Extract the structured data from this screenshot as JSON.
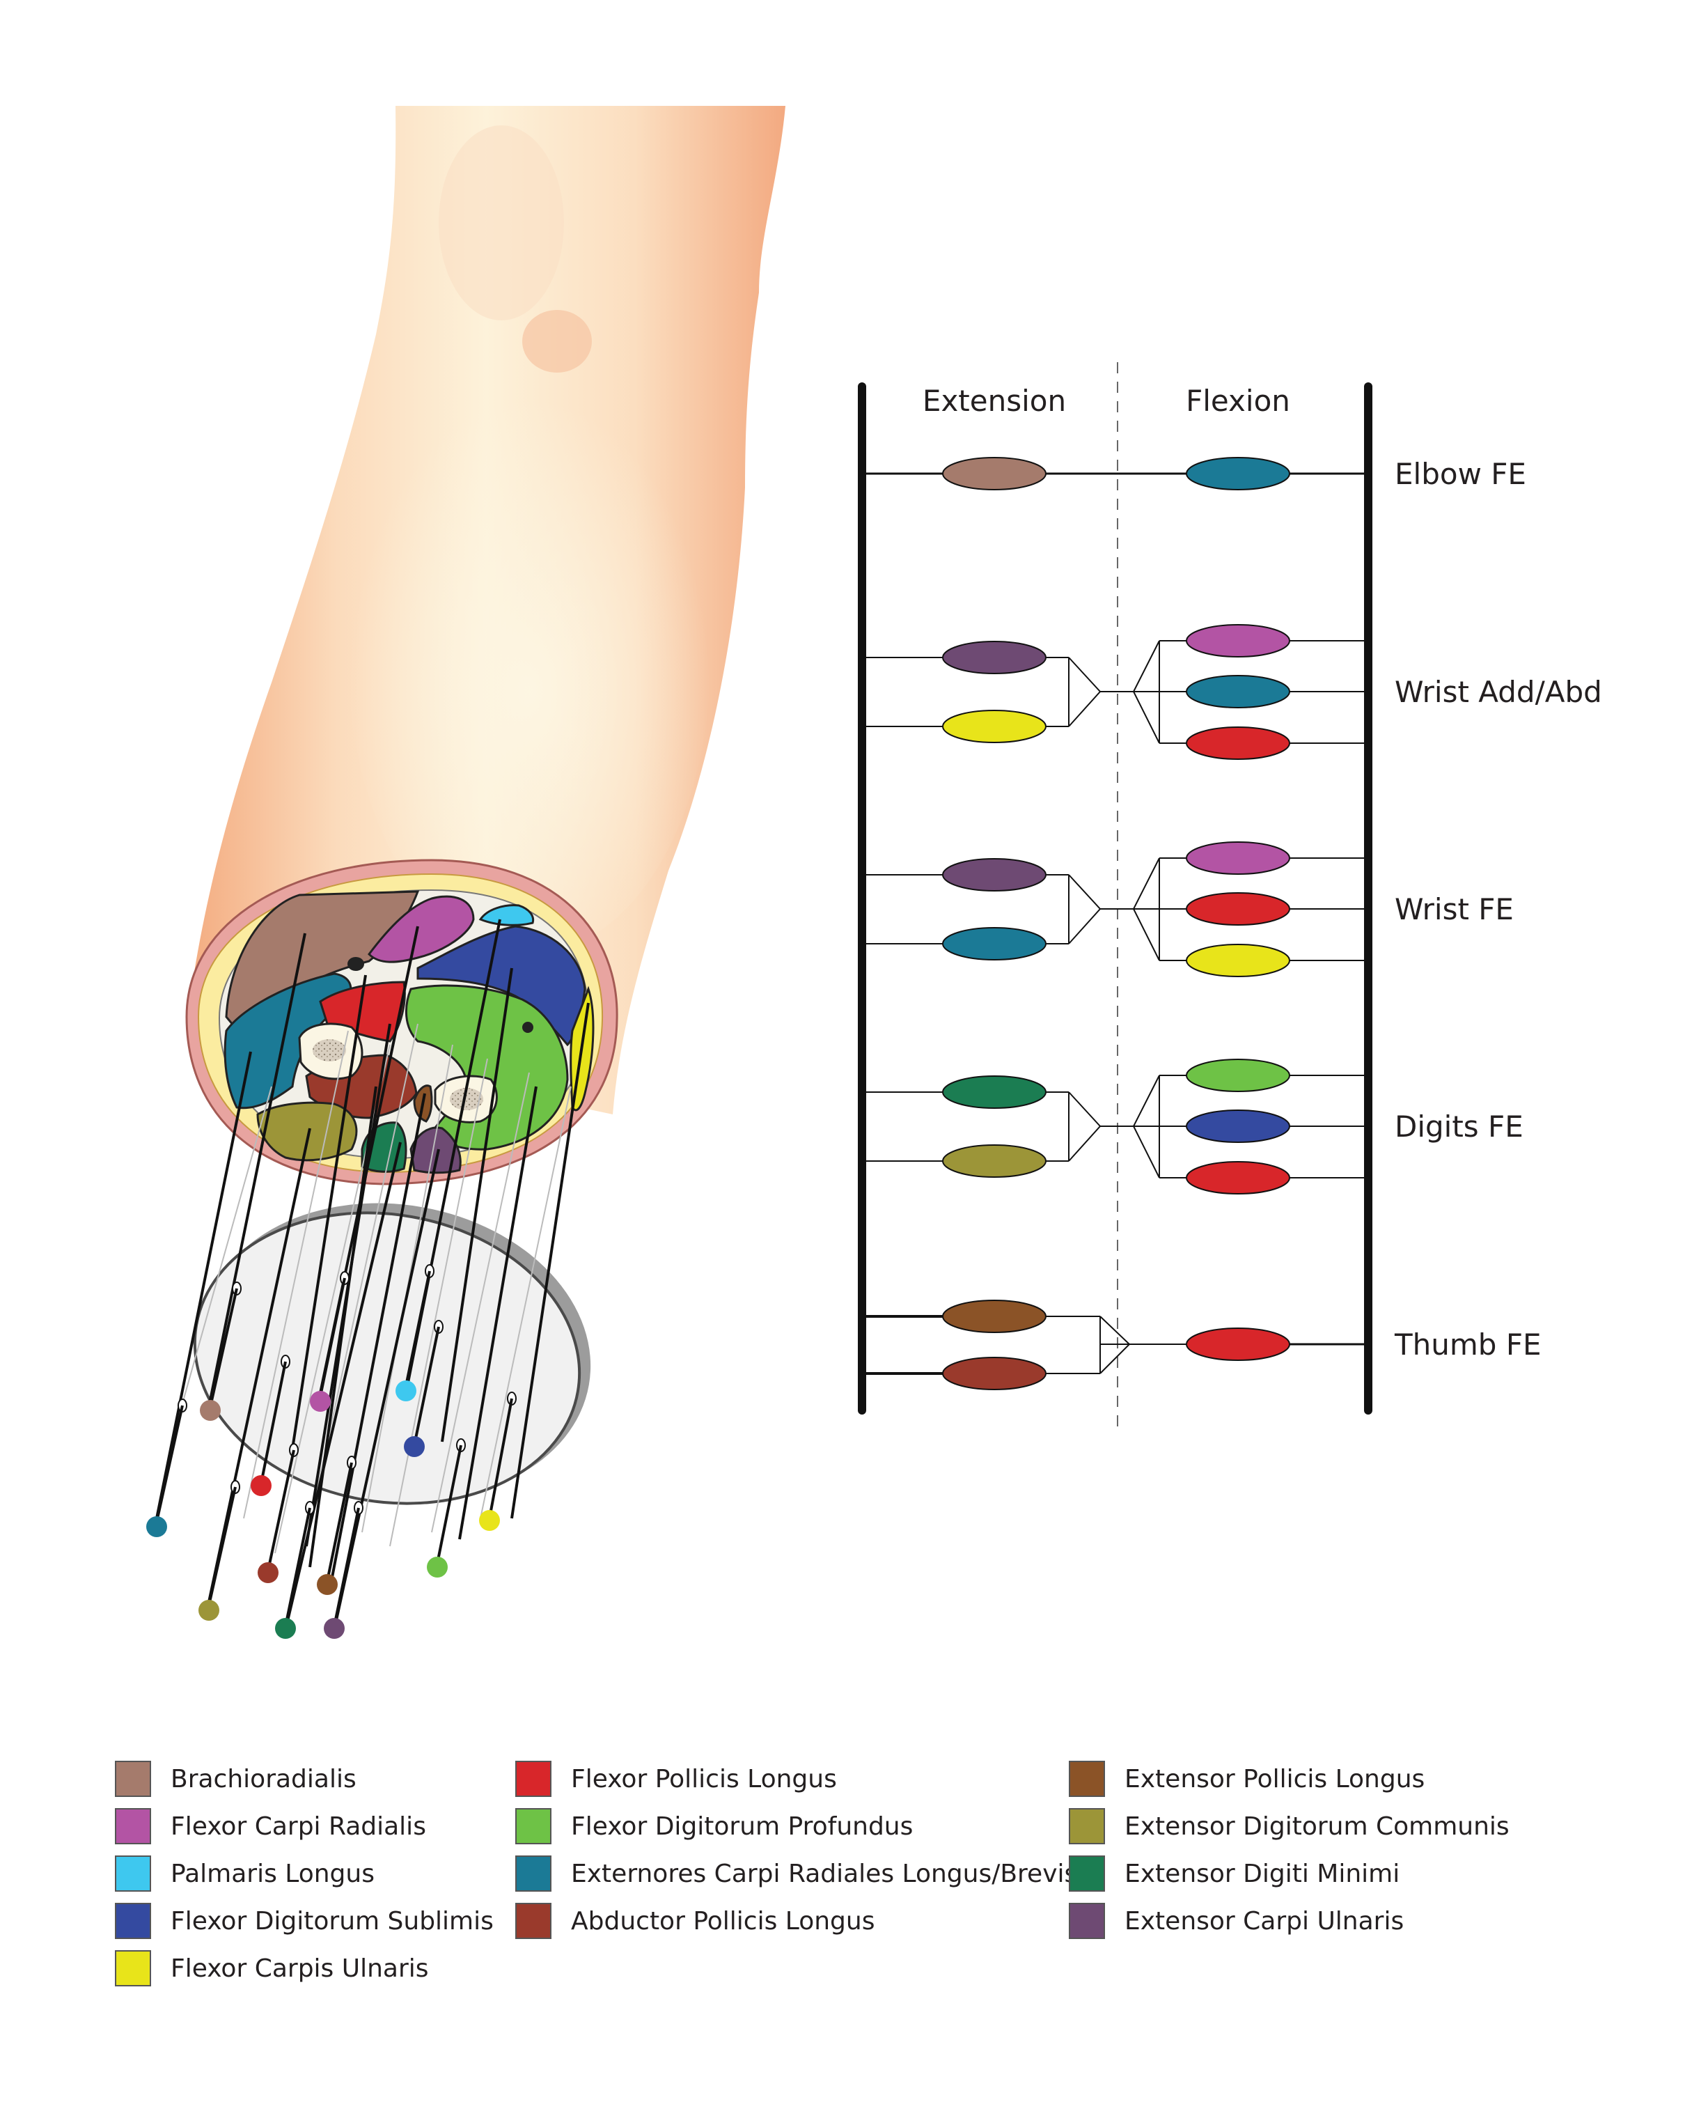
{
  "chart": {
    "header_extension": "Extension",
    "header_flexion": "Flexion",
    "rows": [
      {
        "label": "Elbow FE",
        "extension": [
          "brachioradialis"
        ],
        "flexion": [
          "ecrlb"
        ]
      },
      {
        "label": "Wrist Add/Abd",
        "extension": [
          "ecu",
          "fcu"
        ],
        "flexion": [
          "fcr",
          "ecrlb",
          "fpl"
        ]
      },
      {
        "label": "Wrist FE",
        "extension": [
          "ecu",
          "ecrlb"
        ],
        "flexion": [
          "fcr",
          "fpl",
          "fcu"
        ]
      },
      {
        "label": "Digits FE",
        "extension": [
          "edm",
          "edc"
        ],
        "flexion": [
          "fdp",
          "fds",
          "fpl"
        ]
      },
      {
        "label": "Thumb FE",
        "extension": [
          "epl",
          "apl"
        ],
        "flexion": [
          "fpl"
        ]
      }
    ]
  },
  "colors": {
    "brachioradialis": "#a57b6c",
    "fcr": "#b354a4",
    "pl": "#3ec8ef",
    "fds": "#344aa0",
    "fcu": "#e8e41a",
    "fpl": "#d8262a",
    "fdp": "#6ec246",
    "ecrlb": "#1b7a96",
    "apl": "#9a3a2c",
    "epl": "#8b5327",
    "edc": "#9c9538",
    "edm": "#1b7d52",
    "ecu": "#6e4a73"
  },
  "legend": [
    {
      "key": "brachioradialis",
      "label": "Brachioradialis"
    },
    {
      "key": "fcr",
      "label": "Flexor Carpi Radialis"
    },
    {
      "key": "pl",
      "label": "Palmaris Longus"
    },
    {
      "key": "fds",
      "label": "Flexor Digitorum Sublimis"
    },
    {
      "key": "fcu",
      "label": "Flexor Carpis Ulnaris"
    },
    {
      "key": "fpl",
      "label": "Flexor Pollicis Longus"
    },
    {
      "key": "fdp",
      "label": "Flexor Digitorum Profundus"
    },
    {
      "key": "ecrlb",
      "label": "Externores Carpi Radiales Longus/Brevis"
    },
    {
      "key": "apl",
      "label": "Abductor Pollicis Longus"
    },
    {
      "key": "epl",
      "label": "Extensor Pollicis Longus"
    },
    {
      "key": "edc",
      "label": "Extensor Digitorum Communis"
    },
    {
      "key": "edm",
      "label": "Extensor Digiti Minimi"
    },
    {
      "key": "ecu",
      "label": "Extensor Carpi Ulnaris"
    }
  ]
}
